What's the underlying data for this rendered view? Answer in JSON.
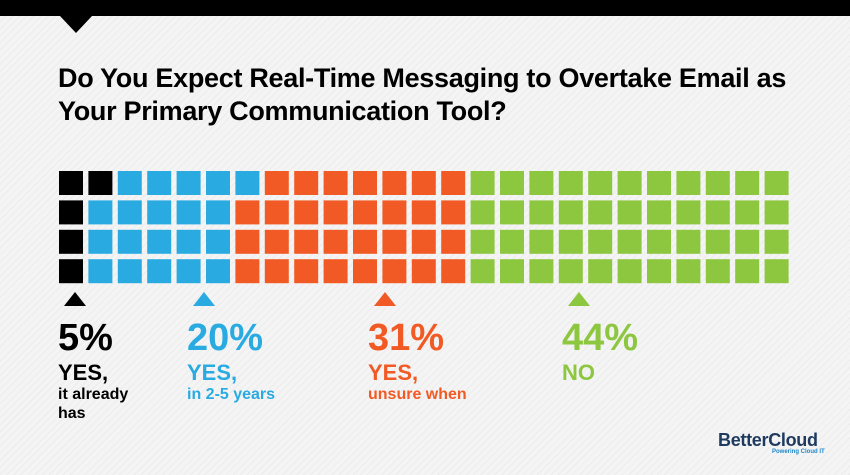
{
  "title": "Do You Expect Real-Time Messaging to Overtake Email as Your Primary Communication Tool?",
  "logo": {
    "name": "BetterCloud",
    "tagline": "Powering Cloud IT"
  },
  "chart_data": {
    "type": "waffle",
    "rows": 4,
    "columns": 25,
    "title": "Do You Expect Real-Time Messaging to Overtake Email as Your Primary Communication Tool?",
    "categories": [
      {
        "percent": "5%",
        "value": 5,
        "answer": "YES,",
        "detail": "it already has",
        "color": "#000000"
      },
      {
        "percent": "20%",
        "value": 20,
        "answer": "YES,",
        "detail": "in 2-5 years",
        "color": "#29abe2"
      },
      {
        "percent": "31%",
        "value": 31,
        "answer": "YES,",
        "detail": "unsure when",
        "color": "#f15a24"
      },
      {
        "percent": "44%",
        "value": 44,
        "answer": "NO",
        "detail": "",
        "color": "#8dc63f"
      }
    ]
  }
}
